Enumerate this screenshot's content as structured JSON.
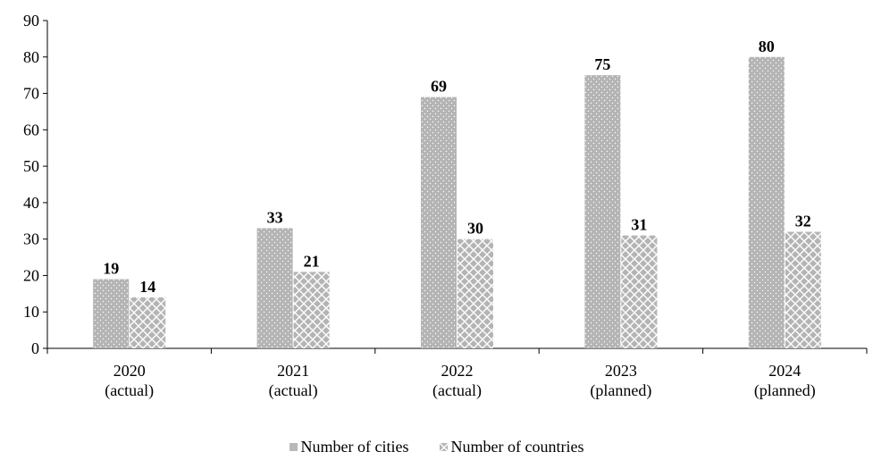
{
  "chart_data": {
    "type": "bar",
    "categories": [
      {
        "year": "2020",
        "status": "(actual)"
      },
      {
        "year": "2021",
        "status": "(actual)"
      },
      {
        "year": "2022",
        "status": "(actual)"
      },
      {
        "year": "2023",
        "status": "(planned)"
      },
      {
        "year": "2024",
        "status": "(planned)"
      }
    ],
    "series": [
      {
        "name": "Number of cities",
        "values": [
          19,
          33,
          69,
          75,
          80
        ],
        "color": "#b9b9b9",
        "pattern": "dots"
      },
      {
        "name": "Number of countries",
        "values": [
          14,
          21,
          30,
          31,
          32
        ],
        "color": "#b9b9b9",
        "pattern": "crosshatch"
      }
    ],
    "ylim": [
      0,
      90
    ],
    "yticks": [
      0,
      10,
      20,
      30,
      40,
      50,
      60,
      70,
      80,
      90
    ],
    "grid": false,
    "legend_position": "bottom-center",
    "title": "",
    "xlabel": "",
    "ylabel": ""
  }
}
